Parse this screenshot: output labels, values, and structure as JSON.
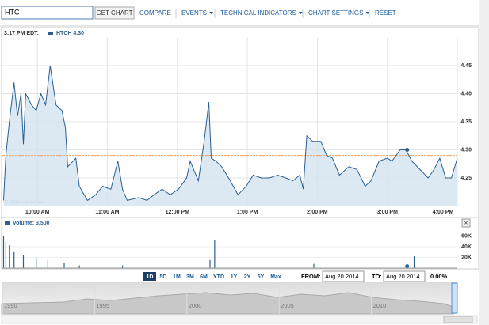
{
  "toolbar": {
    "symbol": "HTC",
    "get_chart": "GET CHART",
    "menu": [
      "COMPARE",
      "EVENTS",
      "TECHNICAL INDICATORS",
      "CHART SETTINGS",
      "RESET"
    ]
  },
  "watermark": "© 2014 Yahoo! Inc.",
  "chart_data": [
    {
      "type": "area",
      "time_label": "3:17 PM EDT:",
      "series": [
        {
          "name": "HTCH 4.30",
          "color": "#2b5f91",
          "fill": "#d3e3f0",
          "x": [
            571,
            573,
            576,
            580,
            583,
            586,
            588,
            590,
            595,
            599,
            603,
            607,
            611,
            616,
            621,
            624,
            626,
            633,
            636,
            643,
            650,
            656,
            663,
            669,
            673,
            677,
            687,
            694,
            700,
            707,
            714,
            721,
            728,
            731,
            734,
            738,
            743,
            747,
            749,
            753,
            758,
            764,
            768,
            772,
            779,
            785,
            792,
            799,
            806,
            813,
            819,
            825,
            828,
            831,
            836,
            843,
            848,
            853,
            859,
            867,
            874,
            881,
            886,
            893,
            900,
            904,
            911,
            916,
            921,
            928,
            935,
            940,
            945,
            950,
            955,
            960
          ],
          "values": [
            4.21,
            4.29,
            4.35,
            4.42,
            4.36,
            4.4,
            4.31,
            4.4,
            4.38,
            4.37,
            4.4,
            4.38,
            4.45,
            4.38,
            4.37,
            4.34,
            4.27,
            4.285,
            4.235,
            4.21,
            4.22,
            4.235,
            4.23,
            4.28,
            4.23,
            4.21,
            4.215,
            4.21,
            4.22,
            4.23,
            4.22,
            4.23,
            4.25,
            4.28,
            4.265,
            4.245,
            4.315,
            4.385,
            4.285,
            4.28,
            4.27,
            4.25,
            4.235,
            4.22,
            4.235,
            4.255,
            4.25,
            4.25,
            4.255,
            4.25,
            4.245,
            4.255,
            4.23,
            4.325,
            4.315,
            4.315,
            4.29,
            4.285,
            4.255,
            4.27,
            4.265,
            4.235,
            4.245,
            4.28,
            4.285,
            4.28,
            4.3,
            4.3,
            4.28,
            4.265,
            4.25,
            4.265,
            4.285,
            4.25,
            4.25,
            4.285
          ]
        }
      ],
      "reference_line": 4.29,
      "reference_color": "#f0a060",
      "marker": {
        "x": 917,
        "value": 4.3
      },
      "xlim": [
        570,
        960
      ],
      "xticks": [
        {
          "value": 600,
          "label": "10:00 AM"
        },
        {
          "value": 660,
          "label": "11:00 AM"
        },
        {
          "value": 720,
          "label": "12:00 PM"
        },
        {
          "value": 780,
          "label": "1:00 PM"
        },
        {
          "value": 840,
          "label": "2:00 PM"
        },
        {
          "value": 900,
          "label": "3:00 PM"
        },
        {
          "value": 960,
          "label": "4:00 PM"
        }
      ],
      "ylim": [
        4.2,
        4.5
      ],
      "yticks": [
        4.25,
        {
          "value": 4.3,
          "label": "4.30"
        },
        4.35,
        {
          "value": 4.4,
          "label": "4.40"
        },
        4.45
      ],
      "grid": true
    },
    {
      "type": "bar",
      "series": [
        {
          "name": "Volume: 3,500",
          "color": "#2b5f91",
          "x": [
            571,
            573,
            576,
            580,
            588,
            599,
            609,
            623,
            636,
            673,
            748,
            752,
            837,
            923
          ],
          "values": [
            60000,
            50000,
            43000,
            30000,
            25000,
            20000,
            15000,
            10000,
            5000,
            5000,
            15000,
            53000,
            8000,
            22000
          ]
        }
      ],
      "marker": {
        "x": 917,
        "value": 3500
      },
      "xlim": [
        570,
        960
      ],
      "ylim": [
        0,
        74000
      ],
      "yticks": [
        {
          "value": 20000,
          "label": "20K"
        },
        {
          "value": 40000,
          "label": "40K"
        },
        {
          "value": 60000,
          "label": "60K"
        }
      ]
    }
  ],
  "range_buttons": [
    "1D",
    "5D",
    "1M",
    "3M",
    "6M",
    "YTD",
    "1Y",
    "2Y",
    "5Y",
    "Max"
  ],
  "selected_range": "1D",
  "from_label": "FROM:",
  "from": "Aug 20 2014",
  "to_label": "TO:",
  "to": "Aug 20 2014",
  "change": "0.00%",
  "navigator": {
    "xlim": [
      1990,
      2014.4
    ],
    "xticks": [
      1990,
      1995,
      2000,
      2005,
      2010
    ]
  }
}
